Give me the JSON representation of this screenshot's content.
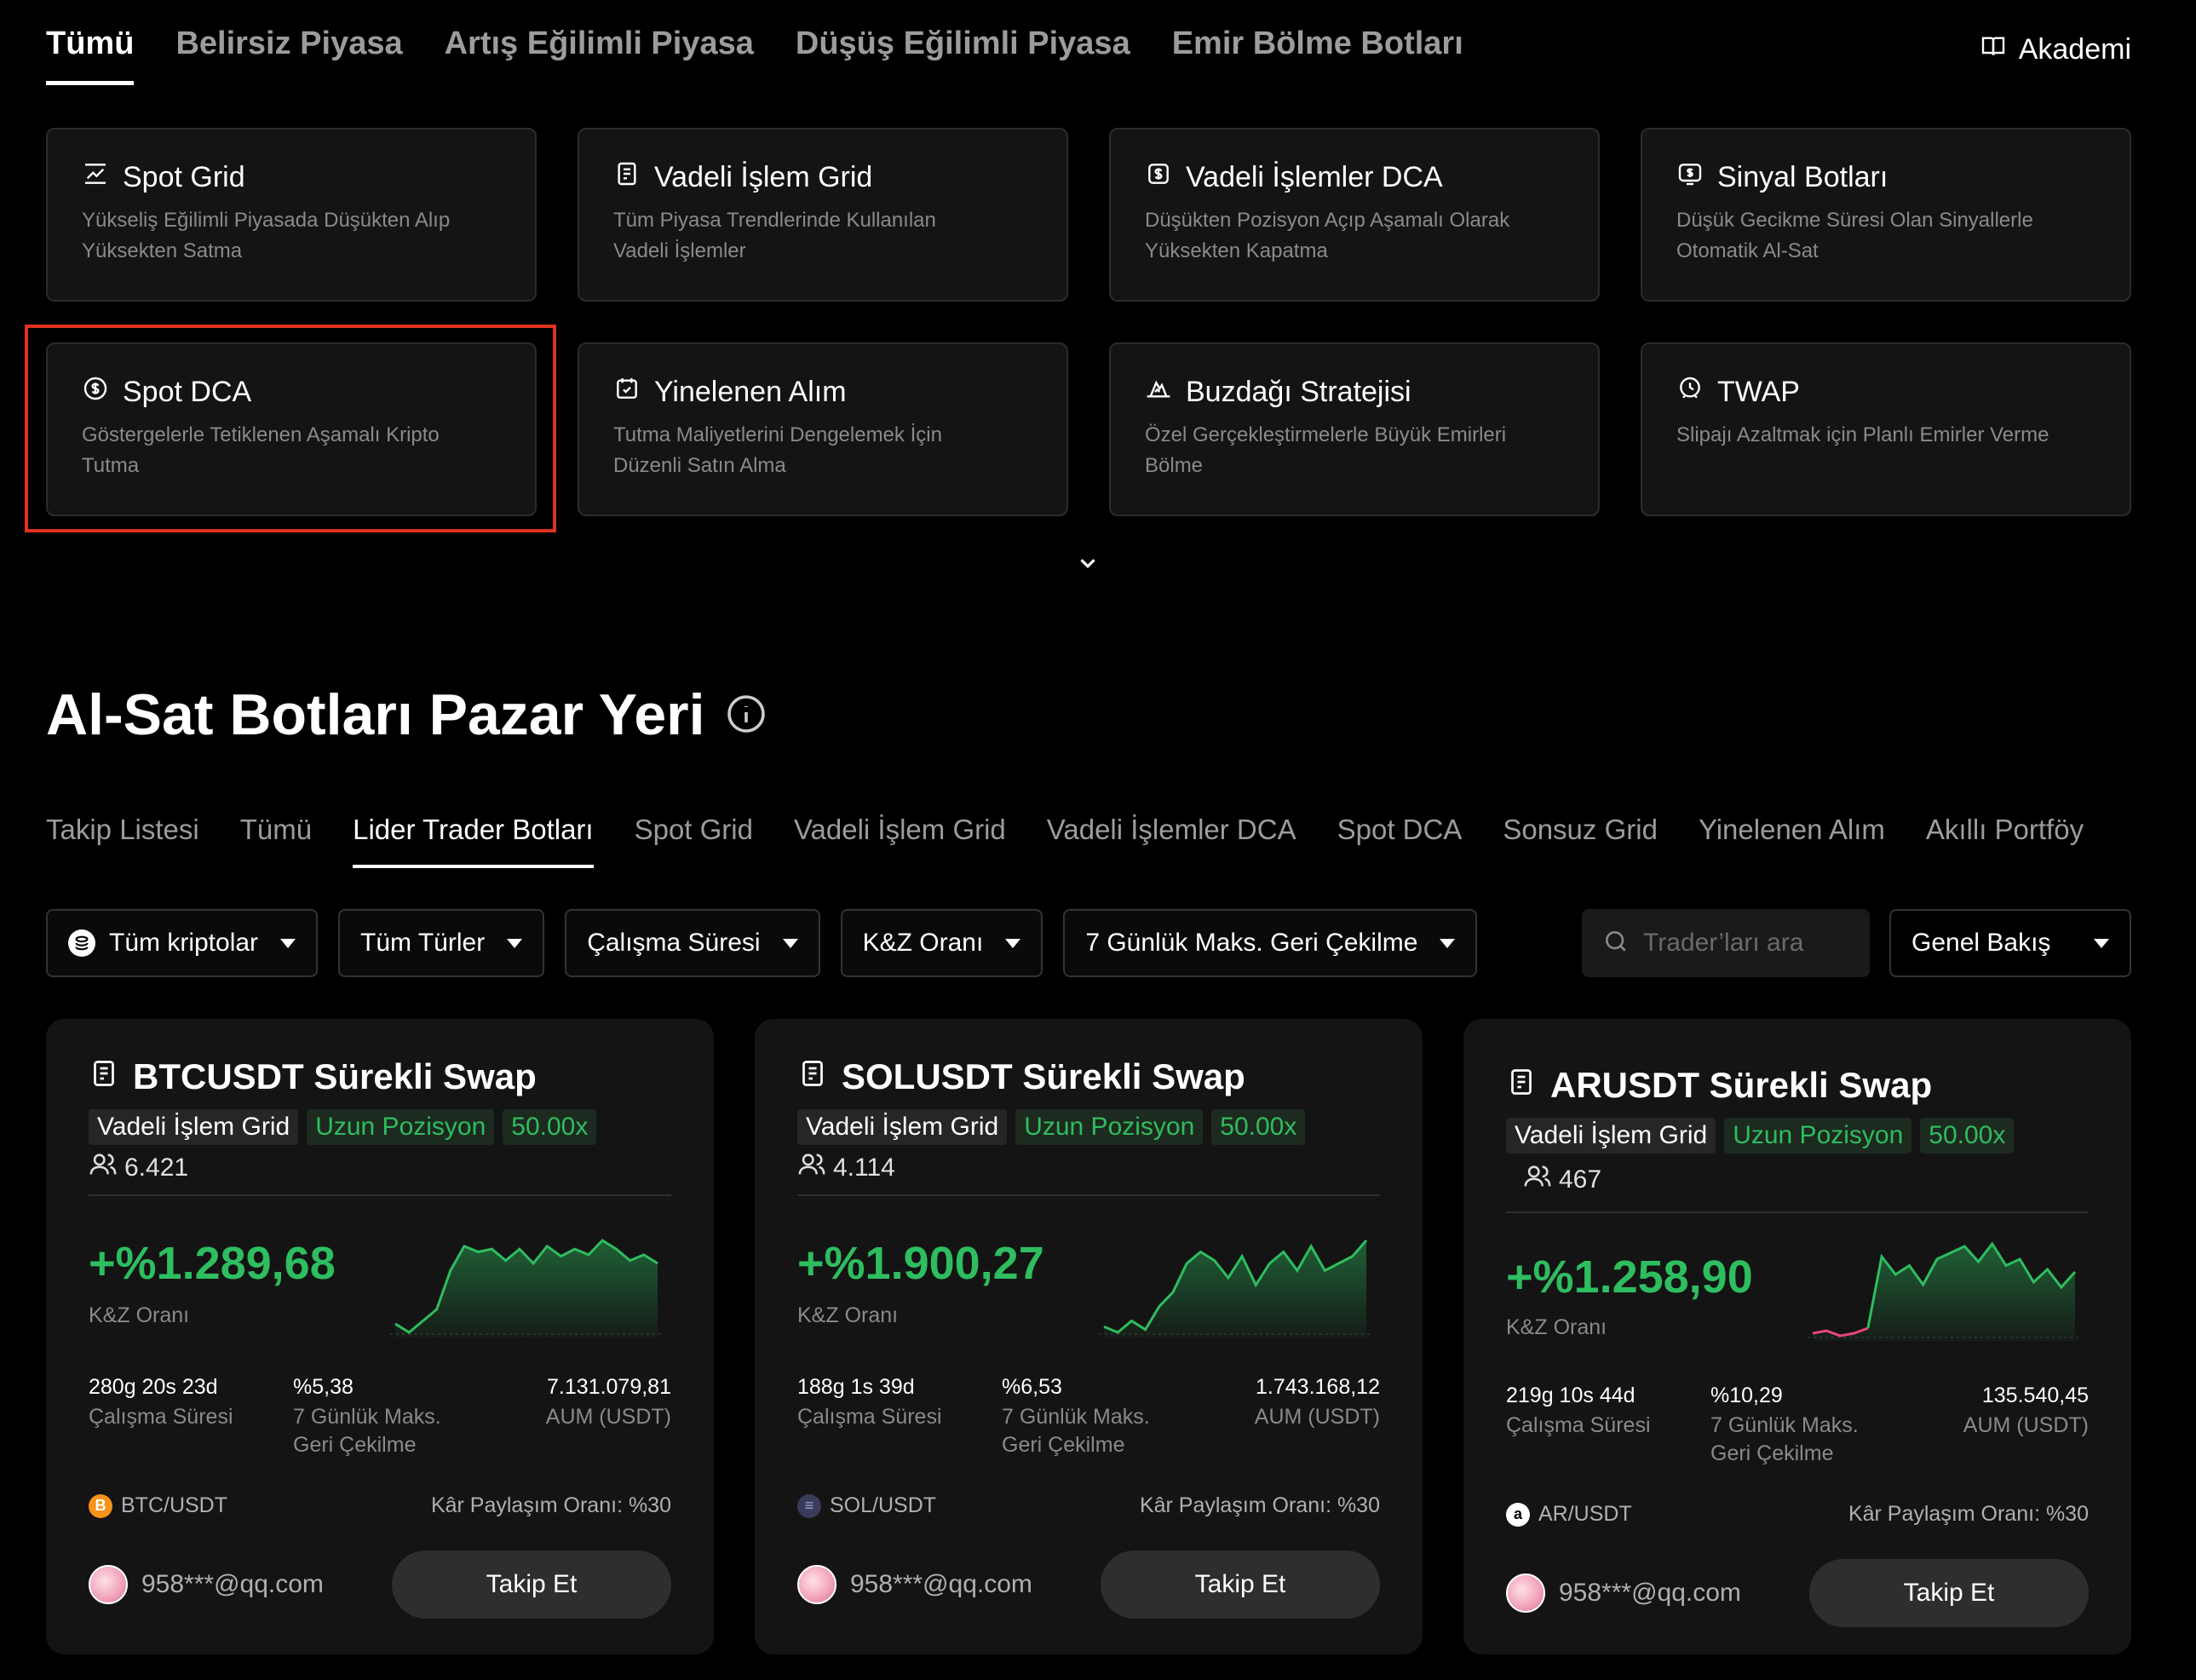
{
  "top_tabs": [
    "Tümü",
    "Belirsiz Piyasa",
    "Artış Eğilimli Piyasa",
    "Düşüş Eğilimli Piyasa",
    "Emir Bölme Botları"
  ],
  "academy_label": "Akademi",
  "bot_types": [
    {
      "title": "Spot Grid",
      "desc1": "Yükseliş Eğilimli Piyasada Düşükten Alıp",
      "desc2": "Yüksekten Satma",
      "icon": "chart-trend-icon"
    },
    {
      "title": "Vadeli İşlem Grid",
      "desc1": "Tüm Piyasa Trendlerinde Kullanılan",
      "desc2": "Vadeli İşlemler",
      "icon": "document-icon"
    },
    {
      "title": "Vadeli İşlemler DCA",
      "desc1": "Düşükten Pozisyon Açıp Aşamalı Olarak",
      "desc2": "Yüksekten Kapatma",
      "icon": "dollar-document-icon"
    },
    {
      "title": "Sinyal Botları",
      "desc1": "Düşük Gecikme Süresi Olan Sinyallerle",
      "desc2": "Otomatik Al-Sat",
      "icon": "signal-icon"
    },
    {
      "title": "Spot DCA",
      "desc1": "Göstergelerle Tetiklenen Aşamalı Kripto",
      "desc2": "Tutma",
      "icon": "coin-cycle-icon"
    },
    {
      "title": "Yinelenen Alım",
      "desc1": "Tutma Maliyetlerini Dengelemek İçin",
      "desc2": "Düzenli Satın Alma",
      "icon": "calendar-icon"
    },
    {
      "title": "Buzdağı Stratejisi",
      "desc1": "Özel Gerçekleştirmelerle Büyük Emirleri",
      "desc2": "Bölme",
      "icon": "iceberg-icon"
    },
    {
      "title": "TWAP",
      "desc1": "Slipajı Azaltmak için Planlı Emirler Verme",
      "desc2": "",
      "icon": "clock-icon"
    }
  ],
  "market_title": "Al-Sat Botları Pazar Yeri",
  "sub_tabs": [
    "Takip Listesi",
    "Tümü",
    "Lider Trader Botları",
    "Spot Grid",
    "Vadeli İşlem Grid",
    "Vadeli İşlemler DCA",
    "Spot DCA",
    "Sonsuz Grid",
    "Yinelenen Alım",
    "Akıllı Portföy"
  ],
  "filters": [
    "Tüm kriptolar",
    "Tüm Türler",
    "Çalışma Süresi",
    "K&Z Oranı",
    "7 Günlük Maks. Geri Çekilme"
  ],
  "search_placeholder": "Trader’ları ara",
  "overview_label": "Genel Bakış",
  "cards": [
    {
      "name": "BTCUSDT Sürekli Swap",
      "tag_type": "Vadeli İşlem Grid",
      "tag_side": "Uzun Pozisyon",
      "tag_lev": "50.00x",
      "followers": "6.421",
      "pnl": "+%1.289,68",
      "pnl_label": "K&Z Oranı",
      "runtime": "280g 20s 23d",
      "runtime_label": "Çalışma Süresi",
      "drawdown": "%5,38",
      "drawdown_label1": "7 Günlük Maks.",
      "drawdown_label2": "Geri Çekilme",
      "aum": "7.131.079,81",
      "aum_label": "AUM (USDT)",
      "pair": "BTC/USDT",
      "pair_color": "#f7931a",
      "pair_glyph": "B",
      "share": "Kâr Paylaşım Oranı: %30",
      "user": "958***@qq.com",
      "follow": "Takip Et",
      "spark": [
        8,
        2,
        10,
        18,
        45,
        62,
        58,
        60,
        52,
        60,
        50,
        62,
        55,
        60,
        56,
        66,
        60,
        52,
        56,
        50
      ],
      "spark_neg_segments": 0
    },
    {
      "name": "SOLUSDT Sürekli Swap",
      "tag_type": "Vadeli İşlem Grid",
      "tag_side": "Uzun Pozisyon",
      "tag_lev": "50.00x",
      "followers": "4.114",
      "pnl": "+%1.900,27",
      "pnl_label": "K&Z Oranı",
      "runtime": "188g 1s 39d",
      "runtime_label": "Çalışma Süresi",
      "drawdown": "%6,53",
      "drawdown_label1": "7 Günlük Maks.",
      "drawdown_label2": "Geri Çekilme",
      "aum": "1.743.168,12",
      "aum_label": "AUM (USDT)",
      "pair": "SOL/USDT",
      "pair_color": "#3a3a5a",
      "pair_glyph": "≡",
      "share": "Kâr Paylaşım Oranı: %30",
      "user": "958***@qq.com",
      "follow": "Takip Et",
      "spark": [
        6,
        2,
        10,
        4,
        20,
        30,
        50,
        58,
        52,
        40,
        55,
        35,
        50,
        58,
        45,
        62,
        45,
        50,
        55,
        66
      ],
      "spark_neg_segments": 0
    },
    {
      "name": "ARUSDT Sürekli Swap",
      "tag_type": "Vadeli İşlem Grid",
      "tag_side": "Uzun Pozisyon",
      "tag_lev": "50.00x",
      "followers": "467",
      "pnl": "+%1.258,90",
      "pnl_label": "K&Z Oranı",
      "runtime": "219g 10s 44d",
      "runtime_label": "Çalışma Süresi",
      "drawdown": "%10,29",
      "drawdown_label1": "7 Günlük Maks.",
      "drawdown_label2": "Geri Çekilme",
      "aum": "135.540,45",
      "aum_label": "AUM (USDT)",
      "pair": "AR/USDT",
      "pair_color": "#ffffff",
      "pair_glyph": "a",
      "share": "Kâr Paylaşım Oranı: %30",
      "user": "958***@qq.com",
      "follow": "Takip Et",
      "spark": [
        2,
        4,
        0,
        2,
        6,
        62,
        48,
        55,
        40,
        60,
        65,
        70,
        58,
        72,
        55,
        60,
        42,
        52,
        38,
        50
      ],
      "spark_neg_segments": 4
    }
  ],
  "colors": {
    "accent_green": "#2ebd5f",
    "negative": "#e8457a",
    "highlight_border": "#e0321f"
  }
}
